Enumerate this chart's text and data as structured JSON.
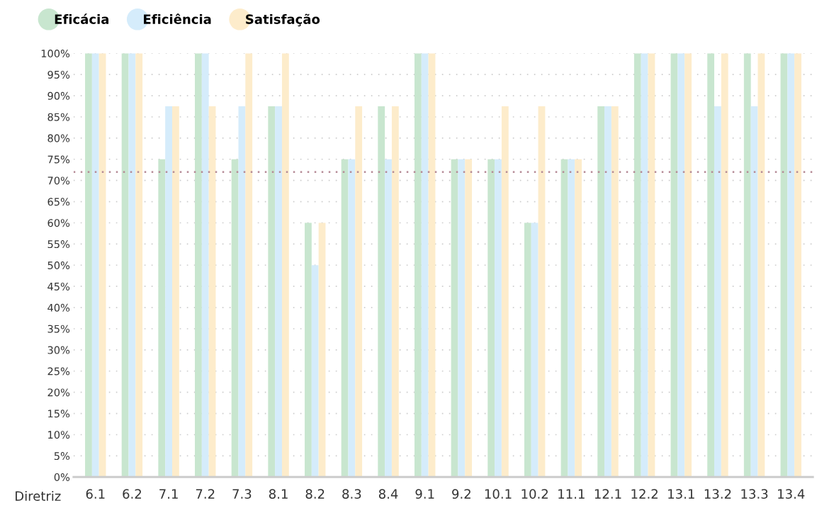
{
  "chart_data": {
    "type": "bar",
    "xlabel": "Diretriz",
    "categories": [
      "6.1",
      "6.2",
      "7.1",
      "7.2",
      "7.3",
      "8.1",
      "8.2",
      "8.3",
      "8.4",
      "9.1",
      "9.2",
      "10.1",
      "10.2",
      "11.1",
      "12.1",
      "12.2",
      "13.1",
      "13.2",
      "13.3",
      "13.4"
    ],
    "series": [
      {
        "name": "Eficácia",
        "color": "#c8e6cf",
        "values": [
          100,
          100,
          75,
          100,
          75,
          87.5,
          60,
          75,
          87.5,
          100,
          75,
          75,
          60,
          75,
          87.5,
          100,
          100,
          100,
          100,
          100
        ]
      },
      {
        "name": "Eficiência",
        "color": "#d5ecfb",
        "values": [
          100,
          100,
          87.5,
          100,
          87.5,
          87.5,
          50,
          75,
          75,
          100,
          75,
          75,
          60,
          75,
          87.5,
          100,
          100,
          87.5,
          87.5,
          100
        ]
      },
      {
        "name": "Satisfação",
        "color": "#fdeccb",
        "values": [
          100,
          100,
          87.5,
          87.5,
          100,
          100,
          60,
          87.5,
          87.5,
          100,
          75,
          87.5,
          87.5,
          75,
          87.5,
          100,
          100,
          100,
          100,
          100
        ]
      }
    ],
    "ylim": [
      0,
      100
    ],
    "yticks": [
      {
        "value": 0,
        "label": "0%"
      },
      {
        "value": 5,
        "label": "5%"
      },
      {
        "value": 10,
        "label": "10%"
      },
      {
        "value": 15,
        "label": "15%"
      },
      {
        "value": 20,
        "label": "20%"
      },
      {
        "value": 25,
        "label": "25%"
      },
      {
        "value": 30,
        "label": "30%"
      },
      {
        "value": 35,
        "label": "35%"
      },
      {
        "value": 40,
        "label": "40%"
      },
      {
        "value": 45,
        "label": "45%"
      },
      {
        "value": 50,
        "label": "50%"
      },
      {
        "value": 55,
        "label": "55%"
      },
      {
        "value": 60,
        "label": "60%"
      },
      {
        "value": 65,
        "label": "65%"
      },
      {
        "value": 70,
        "label": "70%"
      },
      {
        "value": 75,
        "label": "75%"
      },
      {
        "value": 80,
        "label": "80%"
      },
      {
        "value": 85,
        "label": "85%"
      },
      {
        "value": 90,
        "label": "90%"
      },
      {
        "value": 95,
        "label": "95%"
      },
      {
        "value": 100,
        "label": "100%"
      }
    ],
    "grid": "y",
    "legend": "top left",
    "ref_lines": [
      {
        "axis": "y",
        "value": 72,
        "label": null,
        "color": "#b58a96",
        "line_style": "dotted"
      }
    ]
  }
}
